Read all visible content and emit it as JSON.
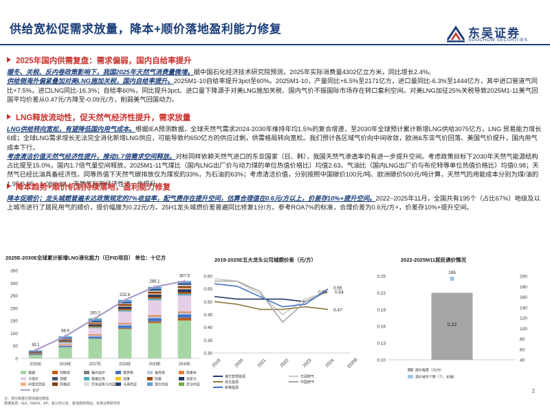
{
  "header": {
    "title": "供给宽松促需求放量，降本+顺价落地盈利能力修复"
  },
  "logo": {
    "cn": "东吴证券",
    "en": "SOOCHOW SECURITIES"
  },
  "sections": [
    {
      "heading": "2025年国内供需复盘：需求偏弱，国内自给率提升",
      "paragraphs": [
        {
          "em": "暖冬、关税、反内卷政策影响下，我国2025年天然气消费量微增。",
          "text": "据中国石化经济技术研究院预测，2025年实际消费量4302亿立方米，同比增长2.4%。"
        },
        {
          "em": "供给侧海外偏紧叠加对美LNG施加关税，国内自给率提升。",
          "text": "2025M1-10自给率提升3pct至60%。2025M1-10，产量同比+6.5%至2171亿方，进口量同比-6.3%至1444亿方，其中进口管道气同比+7.5%，进口LNG同比-16.3%；自给率60%，同比提升3pct。进口量下降源于对美LNG施加关税、国内气价不振国际市场存在转口套利空间。对美LNG加征25%关税导致2025M1-11美气回国平均价差从0.47元/方降至-0.09元/方，削弱美气回国动力。"
        }
      ]
    },
    {
      "heading": "LNG释放流动性，促天然气经济性提升，需求放量",
      "paragraphs": [
        {
          "em": "LNG供给转向宽松，有望降低国内用气成本。",
          "text": "根据IEA预测数据，全球天然气需求2024-2030年维持年均1.5%的复合增速，至2030年全球预计累计新增LNG供给3075亿方，LNG 贸易能力增长6成；全球LNG需求增长无法完全消化新增LNG供应，可能导致约650亿方的供应过剩，供需格局转向宽松。我们预计各区域气价向中间收敛，欧洲&东亚气价回落、美国气价提升，国内用气成本下行。"
        },
        {
          "em": "考虑清洁价值天然气经济性提升，推动1.7倍需求空间释放。",
          "text": "对标同样依赖天然气进口的东亚国家（日、韩），我国天然气渗透率仍有进一步提升空间。考虑政策目标下2030年天然气能源结构占比提至15.0%，国内1.7倍气量空间释放。2025M1-11气煤比（国内LNG出厂价与动力煤的单位热值价格比）均值2.63、气油比（国内LNG出厂价与布伦特等单位热值价格比）均值0.98；天然气已经比油具备经济性。同等热值下天然气碳排放仅为煤炭的33%，为石油的63%；考虑清洁价值，分别按照中国碳价100元/吨、欧洲碳价500元/吨计算，天然气的用能成本分别为煤/油的1.95/0.95、1.08/0.88，天然气利用经济性进一步提升。"
        }
      ]
    },
    {
      "heading": "降本趋势+顺价机制持续落地，盈利能力修复",
      "paragraphs": [
        {
          "em": "降本促顺价；龙头城燃普遍未达政策规定的7%收益率，配气费存在提升空间，估算合理值在0.6元/方以上，价差存10%+提升空间。",
          "text": "2022~2025年11月，全国共有195个（占比67%）地级及以上城市进行了居民用气的顺价，提价幅度为0.22元/方。25H1龙头城燃价差普遍同比修复1分/方。参考ROA7%的标准，合理价差为0.6元/方+，价差存10%+提升空间。"
        }
      ]
    }
  ],
  "charts": {
    "c1": {
      "title": "2025E-2030E全球累计新增LNG液化能力（已FID项目）   单位：十亿方"
    },
    "c2": {
      "title": "2019-2025E五大龙头公司城燃价差（元/方）"
    },
    "c3": {
      "title": "2022-2025M11居民调价情况"
    }
  },
  "chart_data": [
    {
      "type": "bar",
      "title": "2025E-2030E全球累计新增LNG液化能力（已FID项目）",
      "unit": "单位：十亿方",
      "categories": [
        "2025E",
        "2026E",
        "2027E",
        "2028E",
        "2029E",
        "2030E"
      ],
      "ylim": [
        0,
        350
      ],
      "yticks": [
        0,
        50,
        100,
        150,
        200,
        250,
        300,
        350
      ],
      "series": [
        {
          "name": "美国",
          "color": "#a6d6a4",
          "values": [
            14,
            44,
            78,
            117,
            141,
            151
          ]
        },
        {
          "name": "阿联酋",
          "color": "#c55a11",
          "values": [
            0,
            0,
            0,
            2,
            5,
            9
          ]
        },
        {
          "name": "塞内加尔",
          "color": "#7f7f7f",
          "values": [
            1,
            2,
            2,
            2,
            2,
            2
          ]
        },
        {
          "name": "俄罗斯",
          "color": "#4472c4",
          "values": [
            2,
            4,
            7,
            10,
            12,
            13
          ]
        },
        {
          "name": "墨西哥",
          "color": "#b8c9e4",
          "values": [
            0,
            3,
            5,
            6,
            7,
            7
          ]
        },
        {
          "name": "刚果布",
          "color": "#ed7d31",
          "values": [
            1,
            3,
            4,
            4,
            5,
            5
          ]
        },
        {
          "name": "卡塔尔",
          "color": "#e5cfe6",
          "values": [
            0,
            6,
            25,
            46,
            60,
            64
          ]
        },
        {
          "name": "伊朗",
          "color": "#44546a",
          "values": [
            1,
            1,
            1,
            1,
            1,
            1
          ]
        },
        {
          "name": "莫桑比克",
          "color": "#4bacc6",
          "values": [
            1,
            2,
            3,
            4,
            5,
            5
          ]
        },
        {
          "name": "加蓬",
          "color": "#ffc000",
          "values": [
            0,
            1,
            1,
            1,
            1,
            1
          ]
        },
        {
          "name": "阿曼",
          "color": "#9e480e",
          "values": [
            2,
            3,
            4,
            5,
            6,
            7
          ]
        },
        {
          "name": "加拿大",
          "color": "#1f3864",
          "values": [
            2,
            4,
            6,
            8,
            9,
            10
          ]
        },
        {
          "name": "印度尼西亚",
          "color": "#f4b183",
          "values": [
            1,
            2,
            3,
            4,
            5,
            6
          ]
        },
        {
          "name": "阿根廷",
          "color": "#843c0c",
          "values": [
            1,
            2,
            4,
            6,
            7,
            7
          ]
        },
        {
          "name": "巴布亚新几内亚",
          "color": "#d9d9d9",
          "values": [
            0,
            1,
            2,
            3,
            4,
            5
          ]
        },
        {
          "name": "马来西亚",
          "color": "#264478",
          "values": [
            2,
            3,
            4,
            5,
            6,
            6
          ]
        },
        {
          "name": "澳大利亚",
          "color": "#5b9bd5",
          "values": [
            4,
            7,
            9,
            9,
            9,
            9
          ]
        },
        {
          "name": "尼日利亚",
          "color": "#70ad47",
          "values": [
            0,
            0,
            2,
            0,
            0,
            0
          ]
        }
      ],
      "total": {
        "name": "合计",
        "color": "#a99cc9",
        "values": [
          33.1,
          88.6,
          160.2,
          232.6,
          285.1,
          307.5
        ]
      }
    },
    {
      "type": "line",
      "title": "2019-2025E五大龙头公司城燃价差（元/方）",
      "x": [
        "2019",
        "2020",
        "2021",
        "2022",
        "2023",
        "2024",
        "2025E"
      ],
      "ylim": [
        0.3,
        0.6
      ],
      "yticks": [
        0.3,
        0.35,
        0.4,
        0.45,
        0.5,
        0.55,
        0.6
      ],
      "series": [
        {
          "name": "港华智慧能源",
          "color": "#1f3864",
          "values": [
            0.52,
            0.51,
            0.51,
            0.51,
            0.5,
            0.54,
            null
          ]
        },
        {
          "name": "华润燃气",
          "color": "#c8c8c8",
          "values": [
            0.59,
            0.58,
            0.53,
            0.45,
            0.51,
            0.54,
            null
          ]
        },
        {
          "name": "昆仑能源",
          "color": "#8a7a3a",
          "values": [
            0.5,
            0.49,
            0.47,
            0.47,
            0.48,
            0.47,
            null
          ]
        },
        {
          "name": "中国燃气",
          "color": "#a6a6a6",
          "values": [
            0.58,
            0.58,
            0.54,
            0.42,
            0.5,
            0.54,
            null
          ]
        },
        {
          "name": "新奥能源",
          "color": "#4472c4",
          "values": [
            0.57,
            0.56,
            0.52,
            0.48,
            0.49,
            0.55,
            null
          ]
        }
      ],
      "data_labels": [
        "0.55",
        "0.54",
        "0.54",
        "0.47"
      ]
    },
    {
      "type": "bar",
      "title": "2022-2025M11居民调价情况",
      "ylim": [
        0.1,
        0.25
      ],
      "yticks": [
        0.1,
        0.13,
        0.16,
        0.19,
        0.22,
        0.25
      ],
      "y2lim": [
        40,
        200
      ],
      "y2ticks": [
        40,
        60,
        80,
        100,
        120,
        140,
        160,
        180,
        200
      ],
      "series": [
        {
          "name": "提价幅度（元/方）",
          "color": "#a6a6a6",
          "values": [
            0.22
          ]
        },
        {
          "name": "调价城市个数（个，右轴）",
          "color": "#9dc3e6",
          "values": [
            195
          ],
          "axis": "right"
        }
      ]
    }
  ],
  "footer": {
    "lines": [
      "数据来源：IEA、IEEFA、BP、各公司公告、各地政府网站、东吴证券研究所",
      "注：部分数据为预测或估算值"
    ]
  },
  "page": {
    "number": "2"
  }
}
